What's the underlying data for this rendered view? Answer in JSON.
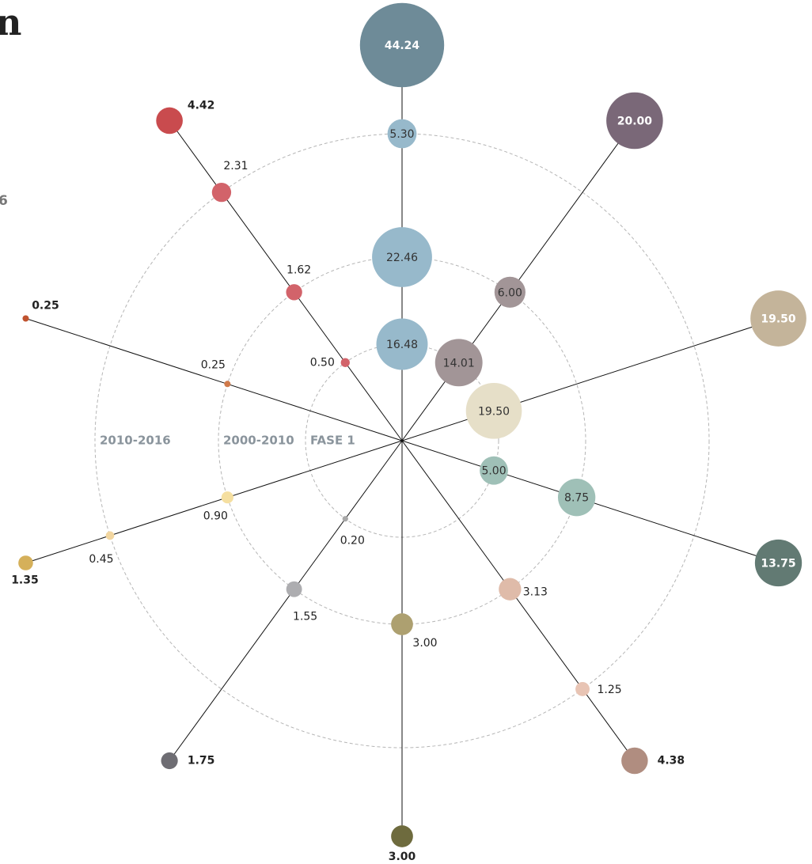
{
  "title_fragment": "n",
  "side_fragment": "6",
  "chart_data": {
    "type": "radial_bubble",
    "rings": [
      "FASE 1",
      "2000-2010",
      "2010-2016"
    ],
    "spokes": [
      {
        "values": [
          16.48,
          22.46,
          5.3,
          44.24
        ],
        "value_labels": [
          "16.48",
          "22.46",
          "5.30",
          "44.24"
        ],
        "colors": [
          "#97b9cb",
          "#97b9cb",
          "#97b9cb",
          "#6e8b98"
        ]
      },
      {
        "values": [
          14.01,
          6.0,
          null,
          20.0
        ],
        "value_labels": [
          "14.01",
          "6.00",
          null,
          "20.00"
        ],
        "colors": [
          "#a29597",
          "#a29597",
          null,
          "#7a6878"
        ]
      },
      {
        "values": [
          19.5,
          null,
          null,
          19.5
        ],
        "value_labels": [
          "19.50",
          null,
          null,
          "19.50"
        ],
        "colors": [
          "#e6dfc8",
          null,
          null,
          "#c4b49a"
        ]
      },
      {
        "values": [
          5.0,
          8.75,
          null,
          13.75
        ],
        "value_labels": [
          "5.00",
          "8.75",
          null,
          "13.75"
        ],
        "colors": [
          "#9fc0b7",
          "#9fc0b7",
          null,
          "#627a73"
        ]
      },
      {
        "values": [
          null,
          3.13,
          1.25,
          4.38
        ],
        "value_labels": [
          null,
          "3.13",
          "1.25",
          "4.38"
        ],
        "colors": [
          null,
          "#dfbba9",
          "#e8c4b4",
          "#b08d80"
        ]
      },
      {
        "values": [
          null,
          3.0,
          null,
          3.0
        ],
        "value_labels": [
          null,
          "3.00",
          null,
          "3.00"
        ],
        "colors": [
          null,
          "#ada070",
          null,
          "#6e6b3e"
        ]
      },
      {
        "values": [
          0.2,
          1.55,
          null,
          1.75
        ],
        "value_labels": [
          "0.20",
          "1.55",
          null,
          "1.75"
        ],
        "colors": [
          "#a8a8a8",
          "#adadb0",
          null,
          "#6e6d73"
        ]
      },
      {
        "values": [
          null,
          0.9,
          0.45,
          1.35
        ],
        "value_labels": [
          null,
          "0.90",
          "0.45",
          "1.35"
        ],
        "colors": [
          null,
          "#f5dfa0",
          "#f2d6a0",
          "#d5b05a"
        ]
      },
      {
        "values": [
          null,
          0.25,
          null,
          0.25
        ],
        "value_labels": [
          null,
          "0.25",
          null,
          "0.25"
        ],
        "colors": [
          null,
          "#d17a4a",
          null,
          "#c0532f"
        ]
      },
      {
        "values": [
          0.5,
          1.62,
          2.31,
          4.42
        ],
        "value_labels": [
          "0.50",
          "1.62",
          "2.31",
          "4.42"
        ],
        "colors": [
          "#d2636a",
          "#d2636a",
          "#d2636a",
          "#c94b4e"
        ]
      }
    ]
  }
}
